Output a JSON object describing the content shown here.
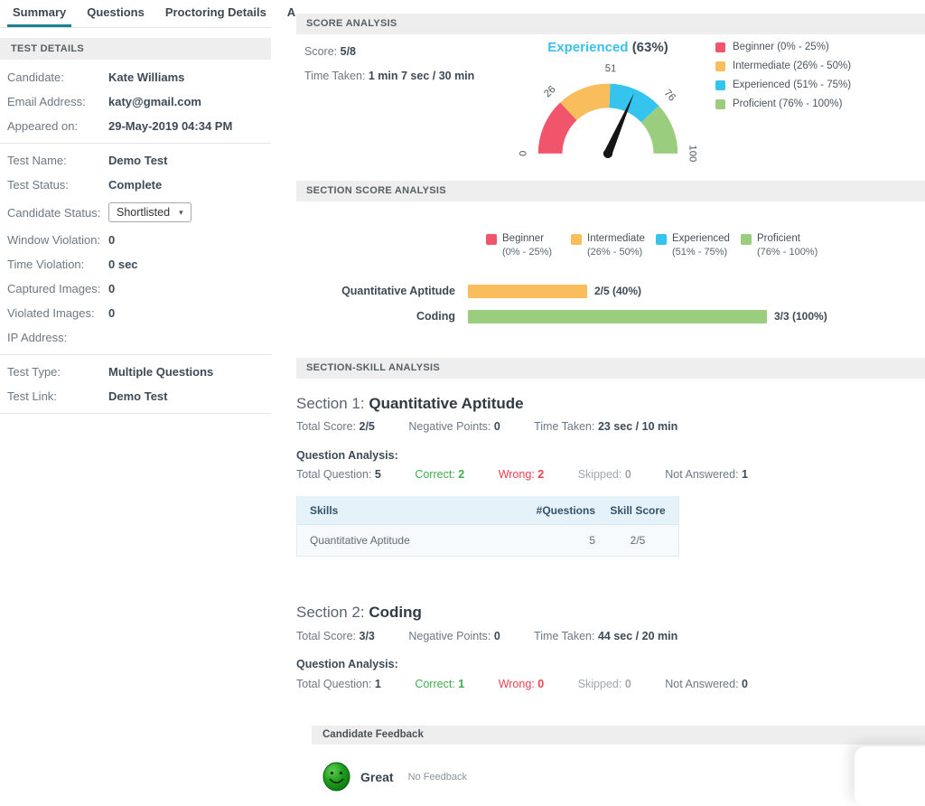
{
  "tabs": [
    {
      "label": "Summary",
      "active": true
    },
    {
      "label": "Questions",
      "active": false
    },
    {
      "label": "Proctoring Details",
      "active": false
    },
    {
      "label": "A",
      "active": false
    }
  ],
  "test_details": {
    "header": "TEST DETAILS",
    "rows": [
      {
        "label": "Candidate:",
        "value": "Kate Williams"
      },
      {
        "label": "Email Address:",
        "value": "katy@gmail.com"
      },
      {
        "label": "Appeared on:",
        "value": "29-May-2019 04:34 PM"
      },
      {
        "label": "Test Name:",
        "value": "Demo Test"
      },
      {
        "label": "Test Status:",
        "value": "Complete"
      },
      {
        "label": "Candidate Status:",
        "value": "Shortlisted"
      },
      {
        "label": "Window Violation:",
        "value": "0"
      },
      {
        "label": "Time Violation:",
        "value": "0 sec"
      },
      {
        "label": "Captured Images:",
        "value": "0"
      },
      {
        "label": "Violated Images:",
        "value": "0"
      },
      {
        "label": "IP Address:",
        "value": ""
      },
      {
        "label": "Test Type:",
        "value": "Multiple Questions"
      },
      {
        "label": "Test Link:",
        "value": "Demo Test"
      }
    ]
  },
  "score_analysis": {
    "header": "SCORE ANALYSIS",
    "score_label": "Score:",
    "score_value": "5/8",
    "time_label": "Time Taken:",
    "time_value": "1 min 7 sec / 30 min",
    "gauge": {
      "level": "Experienced",
      "percent": "(63%)",
      "value": 63,
      "ticks": [
        0,
        26,
        51,
        76,
        100
      ],
      "segments": [
        {
          "from": 0,
          "to": 26,
          "color": "#f1556c"
        },
        {
          "from": 26,
          "to": 51,
          "color": "#f9bd5b"
        },
        {
          "from": 51,
          "to": 76,
          "color": "#35c4ee"
        },
        {
          "from": 76,
          "to": 100,
          "color": "#9bcd7e"
        }
      ]
    },
    "legend": [
      {
        "label": "Beginner (0% - 25%)",
        "color": "#f1556c"
      },
      {
        "label": "Intermediate (26% - 50%)",
        "color": "#f9bd5b"
      },
      {
        "label": "Experienced (51% - 75%)",
        "color": "#35c4ee"
      },
      {
        "label": "Proficient (76% - 100%)",
        "color": "#9bcd7e"
      }
    ]
  },
  "section_score_analysis": {
    "header": "SECTION SCORE ANALYSIS",
    "legend": [
      {
        "name": "Beginner",
        "range": "(0% - 25%)",
        "color": "#f1556c"
      },
      {
        "name": "Intermediate",
        "range": "(26% - 50%)",
        "color": "#f9bd5b"
      },
      {
        "name": "Experienced",
        "range": "(51% - 75%)",
        "color": "#35c4ee"
      },
      {
        "name": "Proficient",
        "range": "(76% - 100%)",
        "color": "#9bcd7e"
      }
    ],
    "bars": [
      {
        "label": "Quantitative Aptitude",
        "percent": 40,
        "text": "2/5 (40%)",
        "color": "#f9bd5b"
      },
      {
        "label": "Coding",
        "percent": 100,
        "text": "3/3 (100%)",
        "color": "#9bcd7e"
      }
    ]
  },
  "section_skill_analysis": {
    "header": "SECTION-SKILL ANALYSIS",
    "sections": [
      {
        "number_label": "Section 1:",
        "name": "Quantitative Aptitude",
        "stats": {
          "total_score_label": "Total Score:",
          "total_score": "2/5",
          "negative_label": "Negative Points:",
          "negative": "0",
          "time_label": "Time Taken:",
          "time": "23 sec / 10 min"
        },
        "question_analysis_label": "Question Analysis:",
        "qa": {
          "total_label": "Total Question:",
          "total": "5",
          "correct_label": "Correct:",
          "correct": "2",
          "wrong_label": "Wrong:",
          "wrong": "2",
          "skipped_label": "Skipped:",
          "skipped": "0",
          "not_answered_label": "Not Answered:",
          "not_answered": "1"
        },
        "table": {
          "columns": [
            "Skills",
            "#Questions",
            "Skill Score"
          ],
          "rows": [
            {
              "skill": "Quantitative Aptitude",
              "questions": "5",
              "score": "2/5"
            }
          ]
        }
      },
      {
        "number_label": "Section 2:",
        "name": "Coding",
        "stats": {
          "total_score_label": "Total Score:",
          "total_score": "3/3",
          "negative_label": "Negative Points:",
          "negative": "0",
          "time_label": "Time Taken:",
          "time": "44 sec / 20 min"
        },
        "question_analysis_label": "Question Analysis:",
        "qa": {
          "total_label": "Total Question:",
          "total": "1",
          "correct_label": "Correct:",
          "correct": "1",
          "wrong_label": "Wrong:",
          "wrong": "0",
          "skipped_label": "Skipped:",
          "skipped": "0",
          "not_answered_label": "Not Answered:",
          "not_answered": "0"
        }
      }
    ]
  },
  "candidate_feedback": {
    "header": "Candidate Feedback",
    "rating": "Great",
    "note": "No Feedback",
    "smiley_color": "#1e9c1e"
  },
  "chart_data": [
    {
      "type": "gauge",
      "title": "Experienced (63%)",
      "value": 63,
      "min": 0,
      "max": 100,
      "ticks": [
        0,
        26,
        51,
        76,
        100
      ],
      "segments": [
        {
          "label": "Beginner",
          "from": 0,
          "to": 26,
          "color": "#f1556c"
        },
        {
          "label": "Intermediate",
          "from": 26,
          "to": 51,
          "color": "#f9bd5b"
        },
        {
          "label": "Experienced",
          "from": 51,
          "to": 76,
          "color": "#35c4ee"
        },
        {
          "label": "Proficient",
          "from": 76,
          "to": 100,
          "color": "#9bcd7e"
        }
      ]
    },
    {
      "type": "bar",
      "orientation": "horizontal",
      "categories": [
        "Quantitative Aptitude",
        "Coding"
      ],
      "values": [
        40,
        100
      ],
      "data_labels": [
        "2/5 (40%)",
        "3/3 (100%)"
      ],
      "colors": [
        "#f9bd5b",
        "#9bcd7e"
      ],
      "xlim": [
        0,
        100
      ],
      "legend": [
        "Beginner (0% - 25%)",
        "Intermediate (26% - 50%)",
        "Experienced (51% - 75%)",
        "Proficient (76% - 100%)"
      ]
    }
  ]
}
